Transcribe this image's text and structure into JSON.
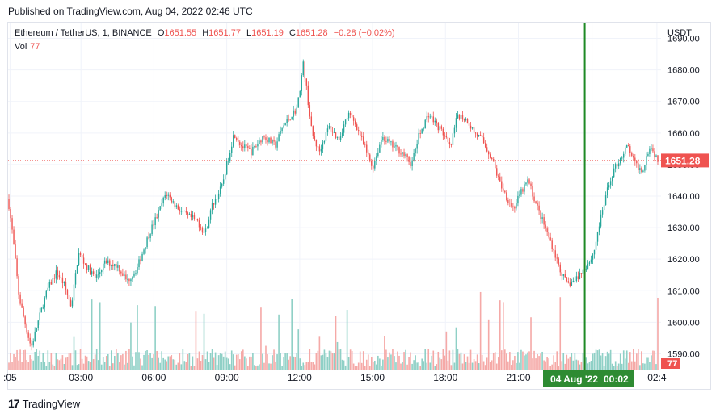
{
  "header": {
    "published": "Published on TradingView.com, Aug 04, 2022 02:46 UTC"
  },
  "legend": {
    "symbol": "Ethereum / TetherUS, 1, BINANCE",
    "o_label": "O",
    "o_value": "1651.55",
    "h_label": "H",
    "h_value": "1651.77",
    "l_label": "L",
    "l_value": "1651.19",
    "c_label": "C",
    "c_value": "1651.28",
    "change": "−0.28 (−0.02%)",
    "vol_label": "Vol",
    "vol_value": "77"
  },
  "footer": {
    "brand": "TradingView"
  },
  "colors": {
    "up": "#26a69a",
    "down": "#ef5350",
    "vol_up": "#8fd0c6",
    "vol_down": "#f5a9a7",
    "crosshair": "#1e8a25",
    "grid": "#f0f3fa"
  },
  "chart_data": {
    "type": "candlestick",
    "currency": "USDT",
    "ylim": [
      1585,
      1695
    ],
    "y_ticks": [
      1590,
      1600,
      1610,
      1620,
      1630,
      1640,
      1650,
      1660,
      1670,
      1680,
      1690
    ],
    "y_tick_labels": [
      "1590.00",
      "1600.00",
      "1610.00",
      "1620.00",
      "1630.00",
      "1640.00",
      "1650.00",
      "1660.00",
      "1670.00",
      "1680.00",
      "1690.00"
    ],
    "x_ticks": [
      ":05",
      "03:00",
      "06:00",
      "09:00",
      "12:00",
      "15:00",
      "18:00",
      "21:00",
      "00:02",
      "02:4"
    ],
    "x_tick_hours": [
      0.08,
      3,
      6,
      9,
      12,
      15,
      18,
      21,
      24.03,
      26.7
    ],
    "x_range_hours": [
      0,
      26.77
    ],
    "last_price": 1651.28,
    "last_price_label": "1651.28",
    "volume_label": "77",
    "crosshair": {
      "x_hours": 23.73,
      "date_label": "04 Aug '22",
      "time_label": "00:02"
    },
    "price_path": [
      [
        0.0,
        1639
      ],
      [
        0.2,
        1627
      ],
      [
        0.45,
        1608
      ],
      [
        0.75,
        1598
      ],
      [
        0.95,
        1592
      ],
      [
        1.3,
        1602
      ],
      [
        1.6,
        1610
      ],
      [
        2.0,
        1616
      ],
      [
        2.3,
        1612
      ],
      [
        2.6,
        1605
      ],
      [
        2.9,
        1622
      ],
      [
        3.2,
        1618
      ],
      [
        3.6,
        1614
      ],
      [
        4.0,
        1619
      ],
      [
        4.5,
        1618
      ],
      [
        4.9,
        1613
      ],
      [
        5.3,
        1617
      ],
      [
        5.8,
        1628
      ],
      [
        6.2,
        1635
      ],
      [
        6.5,
        1641
      ],
      [
        6.9,
        1637
      ],
      [
        7.3,
        1634
      ],
      [
        7.8,
        1632
      ],
      [
        8.1,
        1628
      ],
      [
        8.4,
        1637
      ],
      [
        8.8,
        1643
      ],
      [
        9.0,
        1650
      ],
      [
        9.3,
        1660
      ],
      [
        9.6,
        1656
      ],
      [
        10.0,
        1654
      ],
      [
        10.5,
        1659
      ],
      [
        11.0,
        1656
      ],
      [
        11.3,
        1662
      ],
      [
        11.6,
        1665
      ],
      [
        11.9,
        1668
      ],
      [
        12.15,
        1682
      ],
      [
        12.3,
        1673
      ],
      [
        12.5,
        1660
      ],
      [
        12.8,
        1654
      ],
      [
        13.2,
        1662
      ],
      [
        13.6,
        1658
      ],
      [
        14.0,
        1666
      ],
      [
        14.3,
        1663
      ],
      [
        14.6,
        1657
      ],
      [
        15.0,
        1649
      ],
      [
        15.4,
        1659
      ],
      [
        15.8,
        1656
      ],
      [
        16.2,
        1654
      ],
      [
        16.6,
        1650
      ],
      [
        16.9,
        1659
      ],
      [
        17.3,
        1666
      ],
      [
        17.6,
        1663
      ],
      [
        17.9,
        1660
      ],
      [
        18.2,
        1655
      ],
      [
        18.5,
        1666
      ],
      [
        18.9,
        1664
      ],
      [
        19.2,
        1660
      ],
      [
        19.5,
        1658
      ],
      [
        19.9,
        1652
      ],
      [
        20.2,
        1645
      ],
      [
        20.5,
        1640
      ],
      [
        20.8,
        1636
      ],
      [
        21.1,
        1641
      ],
      [
        21.4,
        1645
      ],
      [
        21.7,
        1638
      ],
      [
        22.0,
        1632
      ],
      [
        22.4,
        1624
      ],
      [
        22.7,
        1617
      ],
      [
        23.0,
        1612
      ],
      [
        23.3,
        1613
      ],
      [
        23.6,
        1616
      ],
      [
        23.9,
        1619
      ],
      [
        24.1,
        1622
      ],
      [
        24.3,
        1630
      ],
      [
        24.6,
        1640
      ],
      [
        24.9,
        1648
      ],
      [
        25.2,
        1652
      ],
      [
        25.5,
        1656
      ],
      [
        25.8,
        1650
      ],
      [
        26.1,
        1648
      ],
      [
        26.4,
        1656
      ],
      [
        26.77,
        1651.3
      ]
    ]
  }
}
